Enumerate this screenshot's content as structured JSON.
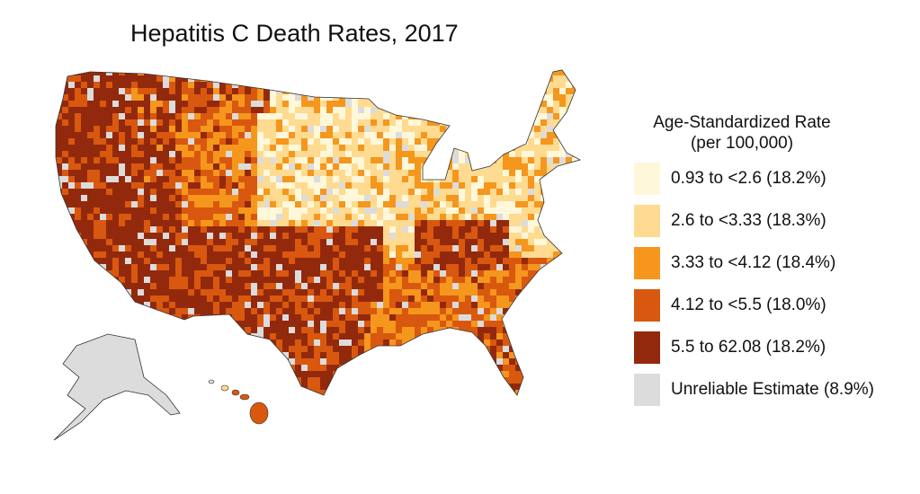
{
  "chart_data": {
    "type": "choropleth",
    "title": "Hepatitis C Death Rates, 2017",
    "legend": {
      "title_line1": "Age-Standardized Rate",
      "title_line2": "(per 100,000)",
      "placement": "right",
      "bins": [
        {
          "label": "0.93 to <2.6 (18.2%)",
          "min": 0.93,
          "max": 2.6,
          "share_pct": 18.2,
          "color": "#fef7da"
        },
        {
          "label": "2.6 to <3.33 (18.3%)",
          "min": 2.6,
          "max": 3.33,
          "share_pct": 18.3,
          "color": "#fedb90"
        },
        {
          "label": "3.33 to <4.12 (18.4%)",
          "min": 3.33,
          "max": 4.12,
          "share_pct": 18.4,
          "color": "#f5961d"
        },
        {
          "label": "4.12 to <5.5 (18.0%)",
          "min": 4.12,
          "max": 5.5,
          "share_pct": 18.0,
          "color": "#d9580f"
        },
        {
          "label": "5.5 to 62.08 (18.2%)",
          "min": 5.5,
          "max": 62.08,
          "share_pct": 18.2,
          "color": "#93290c"
        },
        {
          "label": "Unreliable Estimate (8.9%)",
          "share_pct": 8.9,
          "color": "#dcdcdc"
        }
      ]
    },
    "geography": "United States counties"
  }
}
